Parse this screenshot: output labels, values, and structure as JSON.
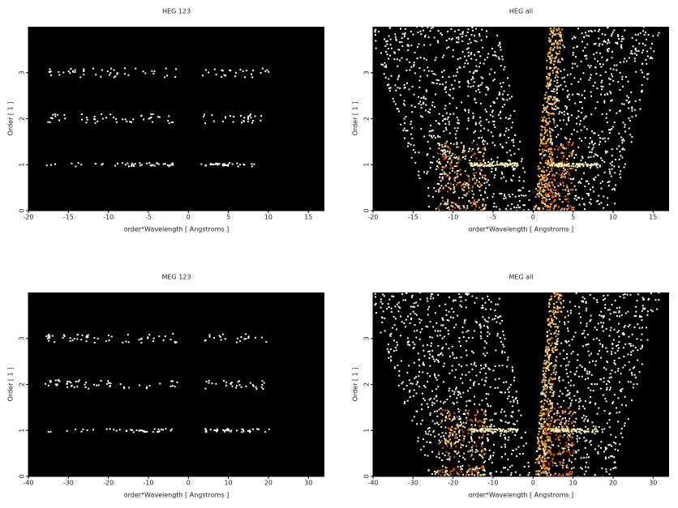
{
  "chart_data": [
    {
      "type": "heatmap",
      "title": "HEG 123",
      "xlabel": "order*Wavelength [ Angstroms ]",
      "ylabel": "Order [ 1 ]",
      "xlim": [
        -20,
        17
      ],
      "xticks": [
        -20,
        -15,
        -10,
        -5,
        0,
        5,
        10,
        15
      ],
      "ylim": [
        0,
        4
      ],
      "yticks": [
        0,
        1,
        2,
        3
      ]
    },
    {
      "type": "heatmap",
      "title": "HEG all",
      "xlabel": "order*Wavelength [ Angstroms ]",
      "ylabel": "Order [ 1 ]",
      "xlim": [
        -20,
        17
      ],
      "xticks": [
        -20,
        -15,
        -10,
        -5,
        0,
        5,
        10,
        15
      ],
      "ylim": [
        0,
        4
      ],
      "yticks": [
        0,
        1,
        2,
        3
      ]
    },
    {
      "type": "heatmap",
      "title": "MEG 123",
      "xlabel": "order*Wavelength [ Angstroms ]",
      "ylabel": "Order [ 1 ]",
      "xlim": [
        -40,
        34
      ],
      "xticks": [
        -40,
        -30,
        -20,
        -10,
        0,
        10,
        20,
        30
      ],
      "ylim": [
        0,
        4
      ],
      "yticks": [
        0,
        1,
        2,
        3
      ]
    },
    {
      "type": "heatmap",
      "title": "MEG all",
      "xlabel": "order*Wavelength [ Angstroms ]",
      "ylabel": "Order [ 1 ]",
      "xlim": [
        -40,
        34
      ],
      "xticks": [
        -40,
        -30,
        -20,
        -10,
        0,
        10,
        20,
        30
      ],
      "ylim": [
        0,
        4
      ],
      "yticks": [
        0,
        1,
        2,
        3
      ]
    }
  ]
}
